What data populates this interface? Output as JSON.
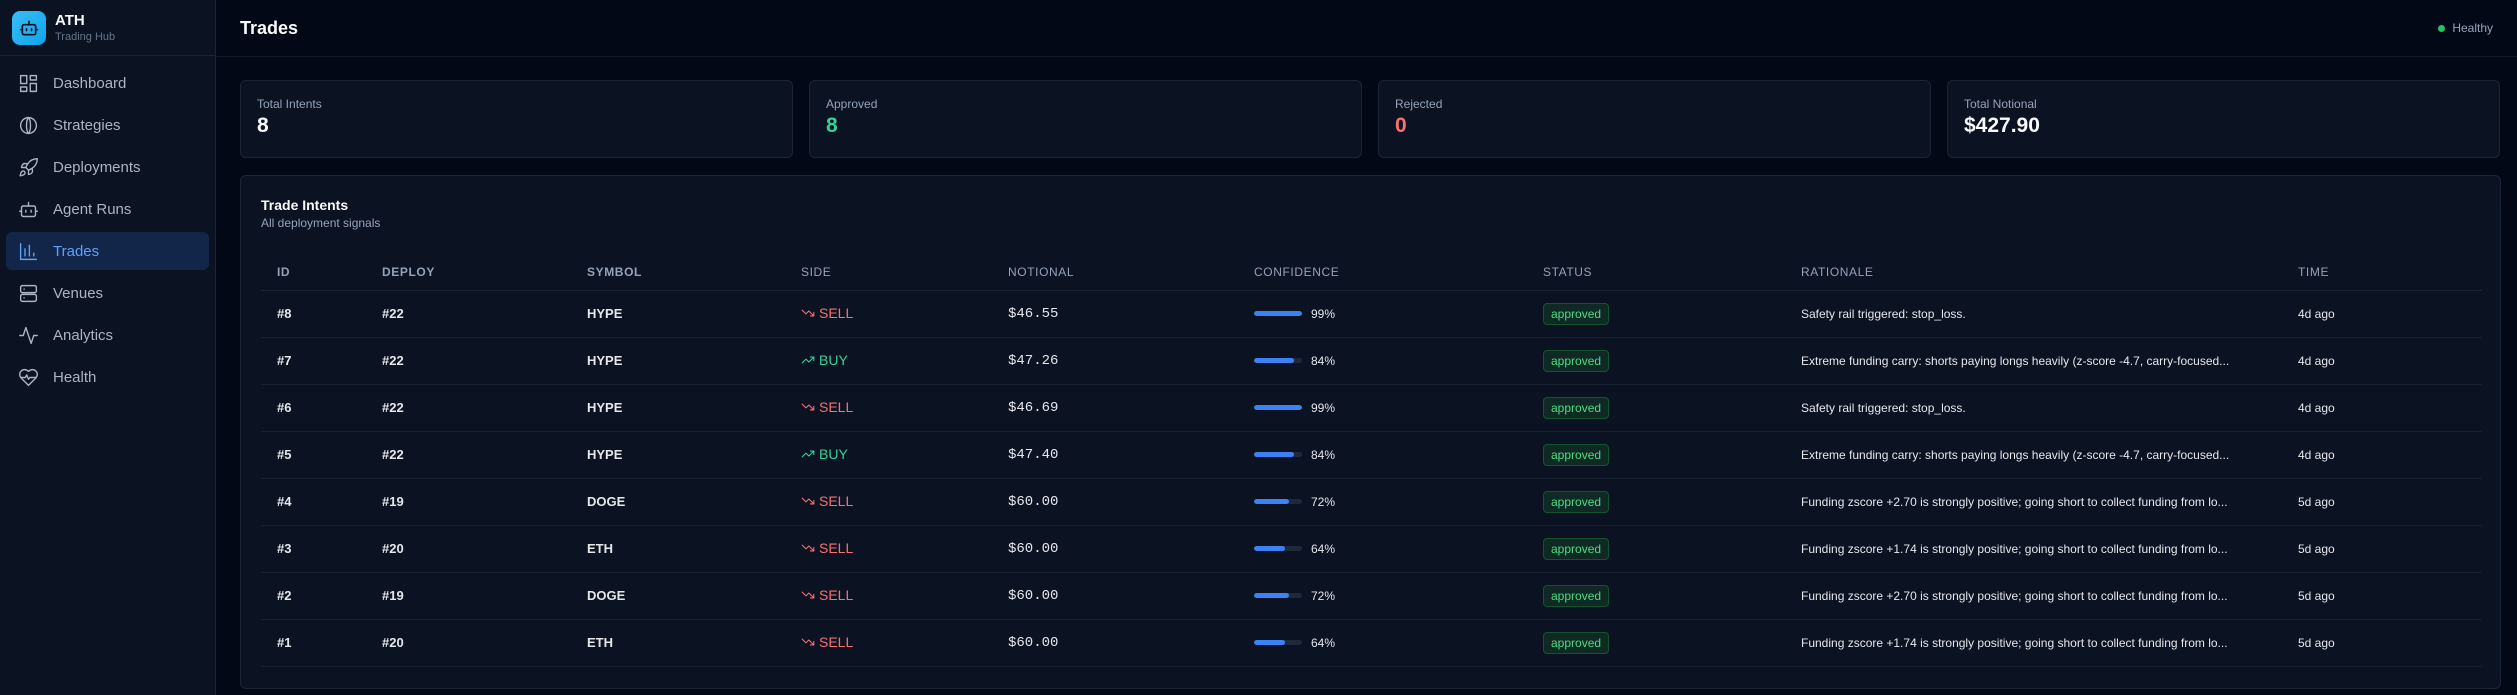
{
  "brand": {
    "name": "ATH",
    "subtitle": "Trading Hub"
  },
  "nav": [
    {
      "label": "Dashboard",
      "icon": "dashboard-icon",
      "active": false
    },
    {
      "label": "Strategies",
      "icon": "strategies-icon",
      "active": false
    },
    {
      "label": "Deployments",
      "icon": "rocket-icon",
      "active": false
    },
    {
      "label": "Agent Runs",
      "icon": "bot-icon",
      "active": false
    },
    {
      "label": "Trades",
      "icon": "bar-chart-icon",
      "active": true
    },
    {
      "label": "Venues",
      "icon": "server-icon",
      "active": false
    },
    {
      "label": "Analytics",
      "icon": "activity-icon",
      "active": false
    },
    {
      "label": "Health",
      "icon": "heart-pulse-icon",
      "active": false
    }
  ],
  "header": {
    "title": "Trades",
    "status": "Healthy"
  },
  "stats": [
    {
      "label": "Total Intents",
      "value": "8",
      "tone": "neutral"
    },
    {
      "label": "Approved",
      "value": "8",
      "tone": "green"
    },
    {
      "label": "Rejected",
      "value": "0",
      "tone": "red"
    },
    {
      "label": "Total Notional",
      "value": "$427.90",
      "tone": "neutral"
    }
  ],
  "panel": {
    "title": "Trade Intents",
    "subtitle": "All deployment signals"
  },
  "table": {
    "columns": [
      "ID",
      "DEPLOY",
      "SYMBOL",
      "SIDE",
      "NOTIONAL",
      "CONFIDENCE",
      "STATUS",
      "RATIONALE",
      "TIME"
    ],
    "rows": [
      {
        "id": "#8",
        "deploy": "#22",
        "symbol": "HYPE",
        "side": "SELL",
        "notional": "$46.55",
        "confidence": 99,
        "confidence_label": "99%",
        "status": "approved",
        "rationale": "Safety rail triggered: stop_loss.",
        "time": "4d ago"
      },
      {
        "id": "#7",
        "deploy": "#22",
        "symbol": "HYPE",
        "side": "BUY",
        "notional": "$47.26",
        "confidence": 84,
        "confidence_label": "84%",
        "status": "approved",
        "rationale": "Extreme funding carry: shorts paying longs heavily (z-score -4.7, carry-focused...",
        "time": "4d ago"
      },
      {
        "id": "#6",
        "deploy": "#22",
        "symbol": "HYPE",
        "side": "SELL",
        "notional": "$46.69",
        "confidence": 99,
        "confidence_label": "99%",
        "status": "approved",
        "rationale": "Safety rail triggered: stop_loss.",
        "time": "4d ago"
      },
      {
        "id": "#5",
        "deploy": "#22",
        "symbol": "HYPE",
        "side": "BUY",
        "notional": "$47.40",
        "confidence": 84,
        "confidence_label": "84%",
        "status": "approved",
        "rationale": "Extreme funding carry: shorts paying longs heavily (z-score -4.7, carry-focused...",
        "time": "4d ago"
      },
      {
        "id": "#4",
        "deploy": "#19",
        "symbol": "DOGE",
        "side": "SELL",
        "notional": "$60.00",
        "confidence": 72,
        "confidence_label": "72%",
        "status": "approved",
        "rationale": "Funding zscore +2.70 is strongly positive; going short to collect funding from lo...",
        "time": "5d ago"
      },
      {
        "id": "#3",
        "deploy": "#20",
        "symbol": "ETH",
        "side": "SELL",
        "notional": "$60.00",
        "confidence": 64,
        "confidence_label": "64%",
        "status": "approved",
        "rationale": "Funding zscore +1.74 is strongly positive; going short to collect funding from lo...",
        "time": "5d ago"
      },
      {
        "id": "#2",
        "deploy": "#19",
        "symbol": "DOGE",
        "side": "SELL",
        "notional": "$60.00",
        "confidence": 72,
        "confidence_label": "72%",
        "status": "approved",
        "rationale": "Funding zscore +2.70 is strongly positive; going short to collect funding from lo...",
        "time": "5d ago"
      },
      {
        "id": "#1",
        "deploy": "#20",
        "symbol": "ETH",
        "side": "SELL",
        "notional": "$60.00",
        "confidence": 64,
        "confidence_label": "64%",
        "status": "approved",
        "rationale": "Funding zscore +1.74 is strongly positive; going short to collect funding from lo...",
        "time": "5d ago"
      }
    ]
  },
  "colors": {
    "accent": "#3b82f6",
    "sell": "#f87171",
    "buy": "#34d399",
    "healthy": "#22c55e"
  }
}
